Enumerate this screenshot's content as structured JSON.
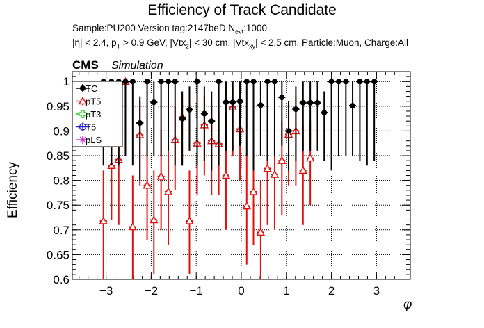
{
  "header": {
    "title": "Efficiency of Track Candidate",
    "sample_text": "Sample:PU200   Version tag:2147beD  N",
    "sample_sub": "evt",
    "sample_tail": ":1000",
    "cuts": {
      "a": "|η| < 2.4, p",
      "a_sub": "T",
      "b": " > 0.9 GeV, |Vtx",
      "b_sub": "z",
      "c": "| < 30 cm, |Vtx",
      "c_sub": "xy",
      "d": "| < 2.5 cm, Particle:Muon, Charge:All"
    },
    "cms": "CMS",
    "simulation": "Simulation"
  },
  "colors": {
    "TC": "#000000",
    "pT5": "#e0100f",
    "pT3": "#18d018",
    "T5": "#2020d8",
    "pLS": "#d040d0"
  },
  "chart_data": {
    "type": "scatter",
    "title": "Efficiency of Track Candidate",
    "xlabel": "φ",
    "ylabel": "Efficiency",
    "xlim": [
      -3.75,
      3.75
    ],
    "ylim": [
      0.6,
      1.02
    ],
    "grid": true,
    "legend_position": "top-left",
    "x_ticks": [
      -3,
      -2,
      -1,
      0,
      1,
      2,
      3
    ],
    "y_ticks": [
      0.6,
      0.65,
      0.7,
      0.75,
      0.8,
      0.85,
      0.9,
      0.95,
      1
    ],
    "bin_half_width": 0.0785,
    "series": [
      {
        "name": "TC",
        "marker": "filled-circle",
        "points": [
          {
            "x": -3.06,
            "y": 1.0,
            "lo": 0.83,
            "hi": 1.0
          },
          {
            "x": -2.88,
            "y": 1.0,
            "lo": 0.83,
            "hi": 1.0
          },
          {
            "x": -2.72,
            "y": 1.0,
            "lo": 0.83,
            "hi": 1.0
          },
          {
            "x": -2.57,
            "y": 1.0,
            "lo": 0.85,
            "hi": 1.0
          },
          {
            "x": -2.41,
            "y": 1.0,
            "lo": 0.83,
            "hi": 1.0
          },
          {
            "x": -2.25,
            "y": 0.916,
            "lo": 0.8,
            "hi": 0.97
          },
          {
            "x": -2.09,
            "y": 1.0,
            "lo": 0.85,
            "hi": 1.0
          },
          {
            "x": -1.94,
            "y": 0.958,
            "lo": 0.85,
            "hi": 1.0
          },
          {
            "x": -1.78,
            "y": 1.0,
            "lo": 0.85,
            "hi": 1.0
          },
          {
            "x": -1.62,
            "y": 1.0,
            "lo": 0.86,
            "hi": 1.0
          },
          {
            "x": -1.47,
            "y": 1.0,
            "lo": 0.83,
            "hi": 1.0
          },
          {
            "x": -1.31,
            "y": 0.925,
            "lo": 0.83,
            "hi": 0.98
          },
          {
            "x": -1.15,
            "y": 0.943,
            "lo": 0.86,
            "hi": 0.99
          },
          {
            "x": -0.98,
            "y": 1.0,
            "lo": 0.83,
            "hi": 1.0
          },
          {
            "x": -0.82,
            "y": 0.935,
            "lo": 0.84,
            "hi": 0.99
          },
          {
            "x": -0.66,
            "y": 0.92,
            "lo": 0.82,
            "hi": 0.98
          },
          {
            "x": -0.5,
            "y": 1.0,
            "lo": 0.83,
            "hi": 1.0
          },
          {
            "x": -0.34,
            "y": 0.958,
            "lo": 0.86,
            "hi": 1.0
          },
          {
            "x": -0.19,
            "y": 0.958,
            "lo": 0.86,
            "hi": 1.0
          },
          {
            "x": -0.03,
            "y": 0.96,
            "lo": 0.87,
            "hi": 1.0
          },
          {
            "x": 0.12,
            "y": 1.0,
            "lo": 0.85,
            "hi": 1.0
          },
          {
            "x": 0.27,
            "y": 1.0,
            "lo": 0.82,
            "hi": 1.0
          },
          {
            "x": 0.43,
            "y": 0.952,
            "lo": 0.85,
            "hi": 1.0
          },
          {
            "x": 0.58,
            "y": 1.0,
            "lo": 0.84,
            "hi": 1.0
          },
          {
            "x": 0.74,
            "y": 1.0,
            "lo": 0.85,
            "hi": 1.0
          },
          {
            "x": 0.9,
            "y": 0.968,
            "lo": 0.87,
            "hi": 1.0
          },
          {
            "x": 1.05,
            "y": 0.9,
            "lo": 0.82,
            "hi": 0.96
          },
          {
            "x": 1.21,
            "y": 0.944,
            "lo": 0.84,
            "hi": 0.99
          },
          {
            "x": 1.37,
            "y": 0.957,
            "lo": 0.86,
            "hi": 1.0
          },
          {
            "x": 1.53,
            "y": 0.957,
            "lo": 0.86,
            "hi": 1.0
          },
          {
            "x": 1.69,
            "y": 0.957,
            "lo": 0.86,
            "hi": 1.0
          },
          {
            "x": 1.84,
            "y": 0.937,
            "lo": 0.84,
            "hi": 0.98
          },
          {
            "x": 2.0,
            "y": 1.0,
            "lo": 0.82,
            "hi": 1.0
          },
          {
            "x": 2.16,
            "y": 1.0,
            "lo": 0.85,
            "hi": 1.0
          },
          {
            "x": 2.32,
            "y": 1.0,
            "lo": 0.85,
            "hi": 1.0
          },
          {
            "x": 2.47,
            "y": 0.951,
            "lo": 0.85,
            "hi": 1.0
          },
          {
            "x": 2.63,
            "y": 1.0,
            "lo": 0.84,
            "hi": 1.0
          },
          {
            "x": 2.79,
            "y": 1.0,
            "lo": 0.83,
            "hi": 1.0
          },
          {
            "x": 2.95,
            "y": 1.0,
            "lo": 0.84,
            "hi": 1.0
          }
        ]
      },
      {
        "name": "pT5",
        "marker": "open-triangle",
        "points": [
          {
            "x": -3.06,
            "y": 0.718,
            "lo": 0.6,
            "hi": 0.82
          },
          {
            "x": -2.88,
            "y": 0.83,
            "lo": 0.72,
            "hi": 0.92
          },
          {
            "x": -2.72,
            "y": 0.842,
            "lo": 0.71,
            "hi": 0.93
          },
          {
            "x": -2.57,
            "y": 1.0,
            "lo": 0.86,
            "hi": 1.0
          },
          {
            "x": -2.41,
            "y": 0.706,
            "lo": 0.6,
            "hi": 0.81
          },
          {
            "x": -2.25,
            "y": 0.892,
            "lo": 0.79,
            "hi": 0.96
          },
          {
            "x": -2.09,
            "y": 0.79,
            "lo": 0.68,
            "hi": 0.88
          },
          {
            "x": -1.94,
            "y": 0.72,
            "lo": 0.61,
            "hi": 0.82
          },
          {
            "x": -1.78,
            "y": 0.808,
            "lo": 0.7,
            "hi": 0.9
          },
          {
            "x": -1.62,
            "y": 0.777,
            "lo": 0.67,
            "hi": 0.87
          },
          {
            "x": -1.47,
            "y": 0.882,
            "lo": 0.78,
            "hi": 0.95
          },
          {
            "x": -1.31,
            "y": 0.928,
            "lo": 0.83,
            "hi": 0.98
          },
          {
            "x": -1.15,
            "y": 0.718,
            "lo": 0.61,
            "hi": 0.82
          },
          {
            "x": -0.98,
            "y": 0.875,
            "lo": 0.77,
            "hi": 0.95
          },
          {
            "x": -0.82,
            "y": 0.912,
            "lo": 0.81,
            "hi": 0.97
          },
          {
            "x": -0.66,
            "y": 0.88,
            "lo": 0.77,
            "hi": 0.95
          },
          {
            "x": -0.5,
            "y": 0.874,
            "lo": 0.77,
            "hi": 0.94
          },
          {
            "x": -0.34,
            "y": 0.81,
            "lo": 0.7,
            "hi": 0.9
          },
          {
            "x": -0.19,
            "y": 0.948,
            "lo": 0.85,
            "hi": 0.99
          },
          {
            "x": -0.03,
            "y": 0.904,
            "lo": 0.8,
            "hi": 0.97
          },
          {
            "x": 0.12,
            "y": 0.748,
            "lo": 0.63,
            "hi": 0.85
          },
          {
            "x": 0.27,
            "y": 0.777,
            "lo": 0.67,
            "hi": 0.87
          },
          {
            "x": 0.43,
            "y": 0.695,
            "lo": 0.6,
            "hi": 0.8
          },
          {
            "x": 0.58,
            "y": 0.824,
            "lo": 0.71,
            "hi": 0.92
          },
          {
            "x": 0.74,
            "y": 0.812,
            "lo": 0.7,
            "hi": 0.91
          },
          {
            "x": 0.9,
            "y": 0.84,
            "lo": 0.73,
            "hi": 0.92
          },
          {
            "x": 1.05,
            "y": 0.893,
            "lo": 0.79,
            "hi": 0.96
          },
          {
            "x": 1.21,
            "y": 0.9,
            "lo": 0.79,
            "hi": 0.97
          },
          {
            "x": 1.37,
            "y": 0.82,
            "lo": 0.71,
            "hi": 0.91
          },
          {
            "x": 1.53,
            "y": 0.845,
            "lo": 0.75,
            "hi": 0.92
          }
        ]
      },
      {
        "name": "pT3",
        "marker": "open-cross",
        "points": []
      },
      {
        "name": "T5",
        "marker": "open-circle",
        "points": []
      },
      {
        "name": "pLS",
        "marker": "open-star",
        "points": []
      }
    ]
  }
}
